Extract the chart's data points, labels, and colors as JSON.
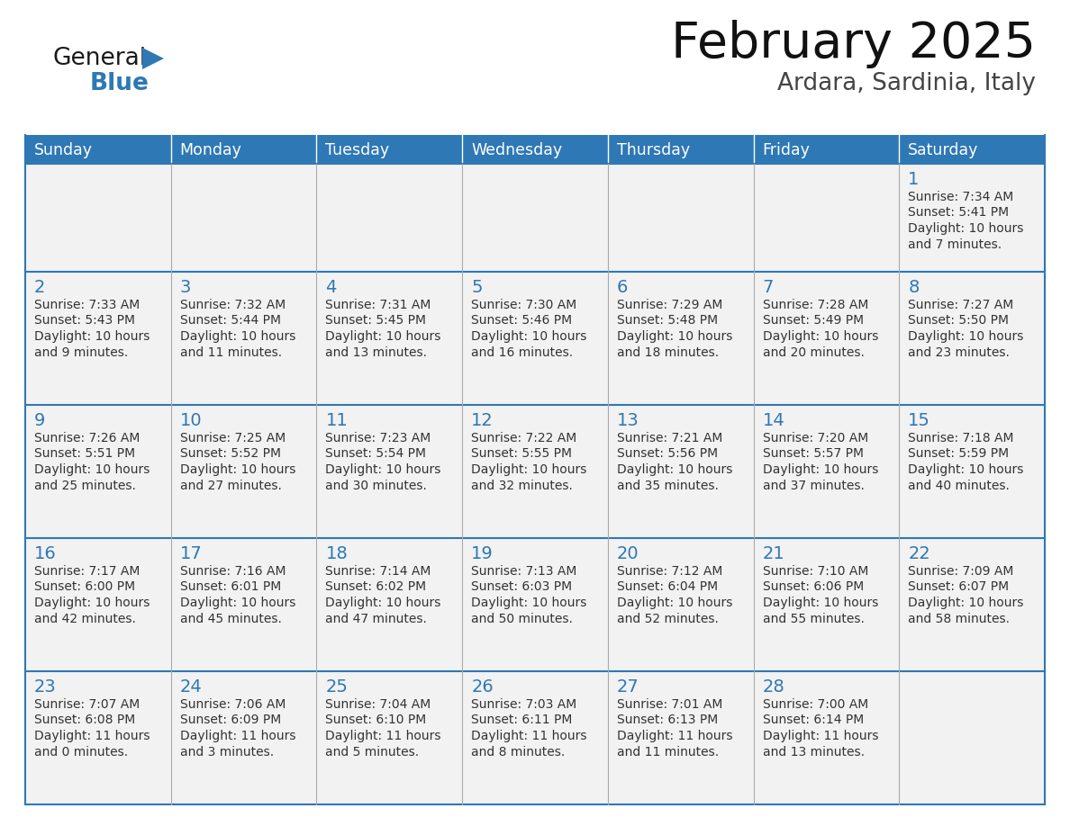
{
  "title": "February 2025",
  "subtitle": "Ardara, Sardinia, Italy",
  "header_bg": "#2E78B5",
  "header_text_color": "#FFFFFF",
  "cell_bg_light": "#F2F2F2",
  "cell_bg_white": "#FFFFFF",
  "border_color": "#2E78B5",
  "sep_color": "#AAAAAA",
  "text_color": "#333333",
  "day_number_color": "#2E78B5",
  "days_of_week": [
    "Sunday",
    "Monday",
    "Tuesday",
    "Wednesday",
    "Thursday",
    "Friday",
    "Saturday"
  ],
  "calendar_data": [
    [
      null,
      null,
      null,
      null,
      null,
      null,
      {
        "day": "1",
        "sunrise": "7:34 AM",
        "sunset": "5:41 PM",
        "daylight_line1": "Daylight: 10 hours",
        "daylight_line2": "and 7 minutes."
      }
    ],
    [
      {
        "day": "2",
        "sunrise": "7:33 AM",
        "sunset": "5:43 PM",
        "daylight_line1": "Daylight: 10 hours",
        "daylight_line2": "and 9 minutes."
      },
      {
        "day": "3",
        "sunrise": "7:32 AM",
        "sunset": "5:44 PM",
        "daylight_line1": "Daylight: 10 hours",
        "daylight_line2": "and 11 minutes."
      },
      {
        "day": "4",
        "sunrise": "7:31 AM",
        "sunset": "5:45 PM",
        "daylight_line1": "Daylight: 10 hours",
        "daylight_line2": "and 13 minutes."
      },
      {
        "day": "5",
        "sunrise": "7:30 AM",
        "sunset": "5:46 PM",
        "daylight_line1": "Daylight: 10 hours",
        "daylight_line2": "and 16 minutes."
      },
      {
        "day": "6",
        "sunrise": "7:29 AM",
        "sunset": "5:48 PM",
        "daylight_line1": "Daylight: 10 hours",
        "daylight_line2": "and 18 minutes."
      },
      {
        "day": "7",
        "sunrise": "7:28 AM",
        "sunset": "5:49 PM",
        "daylight_line1": "Daylight: 10 hours",
        "daylight_line2": "and 20 minutes."
      },
      {
        "day": "8",
        "sunrise": "7:27 AM",
        "sunset": "5:50 PM",
        "daylight_line1": "Daylight: 10 hours",
        "daylight_line2": "and 23 minutes."
      }
    ],
    [
      {
        "day": "9",
        "sunrise": "7:26 AM",
        "sunset": "5:51 PM",
        "daylight_line1": "Daylight: 10 hours",
        "daylight_line2": "and 25 minutes."
      },
      {
        "day": "10",
        "sunrise": "7:25 AM",
        "sunset": "5:52 PM",
        "daylight_line1": "Daylight: 10 hours",
        "daylight_line2": "and 27 minutes."
      },
      {
        "day": "11",
        "sunrise": "7:23 AM",
        "sunset": "5:54 PM",
        "daylight_line1": "Daylight: 10 hours",
        "daylight_line2": "and 30 minutes."
      },
      {
        "day": "12",
        "sunrise": "7:22 AM",
        "sunset": "5:55 PM",
        "daylight_line1": "Daylight: 10 hours",
        "daylight_line2": "and 32 minutes."
      },
      {
        "day": "13",
        "sunrise": "7:21 AM",
        "sunset": "5:56 PM",
        "daylight_line1": "Daylight: 10 hours",
        "daylight_line2": "and 35 minutes."
      },
      {
        "day": "14",
        "sunrise": "7:20 AM",
        "sunset": "5:57 PM",
        "daylight_line1": "Daylight: 10 hours",
        "daylight_line2": "and 37 minutes."
      },
      {
        "day": "15",
        "sunrise": "7:18 AM",
        "sunset": "5:59 PM",
        "daylight_line1": "Daylight: 10 hours",
        "daylight_line2": "and 40 minutes."
      }
    ],
    [
      {
        "day": "16",
        "sunrise": "7:17 AM",
        "sunset": "6:00 PM",
        "daylight_line1": "Daylight: 10 hours",
        "daylight_line2": "and 42 minutes."
      },
      {
        "day": "17",
        "sunrise": "7:16 AM",
        "sunset": "6:01 PM",
        "daylight_line1": "Daylight: 10 hours",
        "daylight_line2": "and 45 minutes."
      },
      {
        "day": "18",
        "sunrise": "7:14 AM",
        "sunset": "6:02 PM",
        "daylight_line1": "Daylight: 10 hours",
        "daylight_line2": "and 47 minutes."
      },
      {
        "day": "19",
        "sunrise": "7:13 AM",
        "sunset": "6:03 PM",
        "daylight_line1": "Daylight: 10 hours",
        "daylight_line2": "and 50 minutes."
      },
      {
        "day": "20",
        "sunrise": "7:12 AM",
        "sunset": "6:04 PM",
        "daylight_line1": "Daylight: 10 hours",
        "daylight_line2": "and 52 minutes."
      },
      {
        "day": "21",
        "sunrise": "7:10 AM",
        "sunset": "6:06 PM",
        "daylight_line1": "Daylight: 10 hours",
        "daylight_line2": "and 55 minutes."
      },
      {
        "day": "22",
        "sunrise": "7:09 AM",
        "sunset": "6:07 PM",
        "daylight_line1": "Daylight: 10 hours",
        "daylight_line2": "and 58 minutes."
      }
    ],
    [
      {
        "day": "23",
        "sunrise": "7:07 AM",
        "sunset": "6:08 PM",
        "daylight_line1": "Daylight: 11 hours",
        "daylight_line2": "and 0 minutes."
      },
      {
        "day": "24",
        "sunrise": "7:06 AM",
        "sunset": "6:09 PM",
        "daylight_line1": "Daylight: 11 hours",
        "daylight_line2": "and 3 minutes."
      },
      {
        "day": "25",
        "sunrise": "7:04 AM",
        "sunset": "6:10 PM",
        "daylight_line1": "Daylight: 11 hours",
        "daylight_line2": "and 5 minutes."
      },
      {
        "day": "26",
        "sunrise": "7:03 AM",
        "sunset": "6:11 PM",
        "daylight_line1": "Daylight: 11 hours",
        "daylight_line2": "and 8 minutes."
      },
      {
        "day": "27",
        "sunrise": "7:01 AM",
        "sunset": "6:13 PM",
        "daylight_line1": "Daylight: 11 hours",
        "daylight_line2": "and 11 minutes."
      },
      {
        "day": "28",
        "sunrise": "7:00 AM",
        "sunset": "6:14 PM",
        "daylight_line1": "Daylight: 11 hours",
        "daylight_line2": "and 13 minutes."
      },
      null
    ]
  ],
  "logo_color_general": "#1A1A1A",
  "logo_color_blue": "#2E78B5",
  "logo_triangle_color": "#2E78B5",
  "fig_width": 11.88,
  "fig_height": 9.18,
  "dpi": 100
}
